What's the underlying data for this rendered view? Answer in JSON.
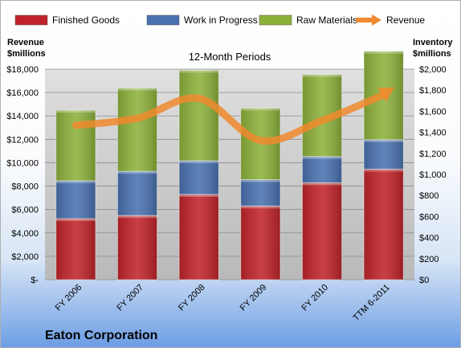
{
  "chart_data": {
    "type": "bar",
    "stacked": true,
    "title": "12-Month Periods",
    "company": "Eaton Corporation",
    "categories": [
      "FY 2006",
      "FY 2007",
      "FY 2008",
      "FY 2009",
      "FY 2010",
      "TTM 6-2011"
    ],
    "series": [
      {
        "name": "Finished Goods",
        "axis": "right",
        "color": "#c0242a",
        "values": [
          580,
          610,
          810,
          700,
          920,
          1050
        ]
      },
      {
        "name": "Work in Progress",
        "axis": "right",
        "color": "#4a72b0",
        "values": [
          360,
          420,
          320,
          250,
          250,
          280
        ]
      },
      {
        "name": "Raw Materials",
        "axis": "right",
        "color": "#8db13b",
        "values": [
          670,
          790,
          860,
          680,
          780,
          840
        ]
      },
      {
        "name": "Revenue",
        "axis": "left",
        "type": "line",
        "color": "#f08a2e",
        "values": [
          13200,
          13800,
          15500,
          11900,
          13600,
          15800
        ]
      }
    ],
    "left_axis": {
      "title": [
        "Revenue",
        "$millions"
      ],
      "ticks": [
        "$18,000",
        "$16,000",
        "$14,000",
        "$12,000",
        "$10,000",
        "$8,000",
        "$6,000",
        "$4,000",
        "$2,000",
        "$-"
      ],
      "ylim": [
        0,
        18000
      ]
    },
    "right_axis": {
      "title": [
        "Inventory",
        "$millions"
      ],
      "ticks": [
        "$2,000",
        "$1,800",
        "$1,600",
        "$1,400",
        "$1,200",
        "$1,000",
        "$800",
        "$600",
        "$400",
        "$200",
        "$0"
      ],
      "ylim": [
        0,
        2000
      ]
    },
    "legend_position": "top",
    "grid": true
  }
}
